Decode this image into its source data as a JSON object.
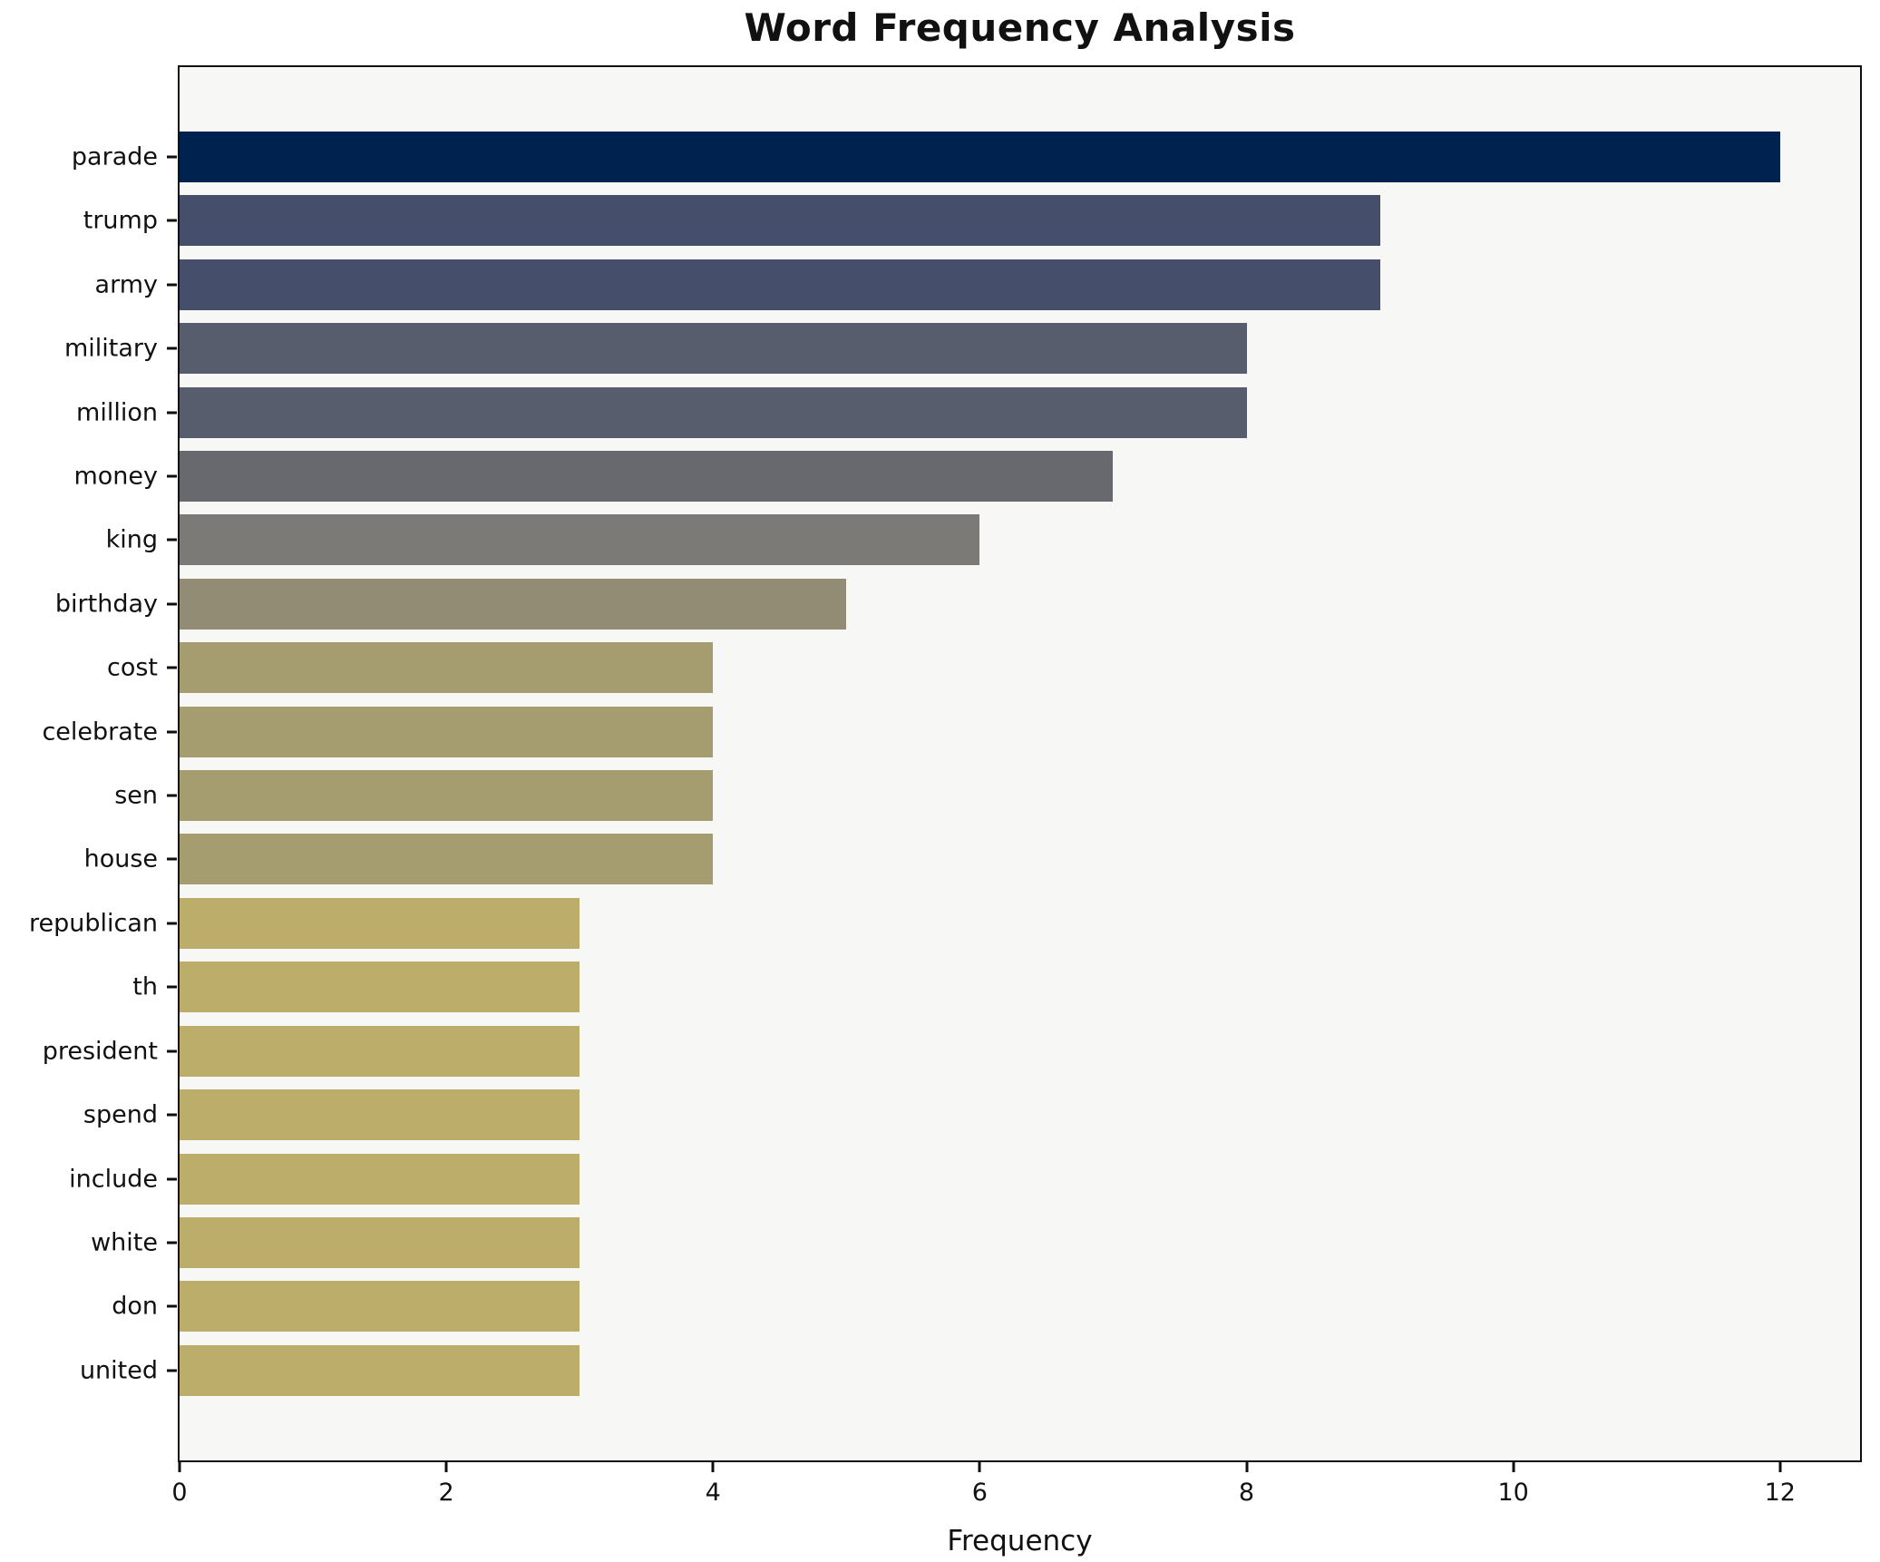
{
  "title": "Word Frequency Analysis",
  "chart_data": {
    "type": "bar",
    "orientation": "horizontal",
    "title": "Word Frequency Analysis",
    "xlabel": "Frequency",
    "ylabel": "",
    "categories": [
      "parade",
      "trump",
      "army",
      "military",
      "million",
      "money",
      "king",
      "birthday",
      "cost",
      "celebrate",
      "sen",
      "house",
      "republican",
      "th",
      "president",
      "spend",
      "include",
      "white",
      "don",
      "united"
    ],
    "values": [
      12,
      9,
      9,
      8,
      8,
      7,
      6,
      5,
      4,
      4,
      4,
      4,
      3,
      3,
      3,
      3,
      3,
      3,
      3,
      3
    ],
    "bar_colors": [
      "#00224e",
      "#454e6b",
      "#454e6b",
      "#575d6d",
      "#575d6d",
      "#67696f",
      "#7b7a76",
      "#928c74",
      "#a59d6f",
      "#a59d6f",
      "#a59d6f",
      "#a59d6f",
      "#bcae6a",
      "#bcae6a",
      "#bcae6a",
      "#bcae6a",
      "#bcae6a",
      "#bcae6a",
      "#bcae6a",
      "#bcae6a"
    ],
    "x_ticks": [
      0,
      2,
      4,
      6,
      8,
      10,
      12
    ],
    "xlim": [
      0,
      12.6
    ],
    "grid": false,
    "legend": false,
    "colormap": "cividis-reversed",
    "plot_bg": "#f7f7f6",
    "fig_bg": "#ffffff",
    "spine_color": "#0f0f0f"
  }
}
